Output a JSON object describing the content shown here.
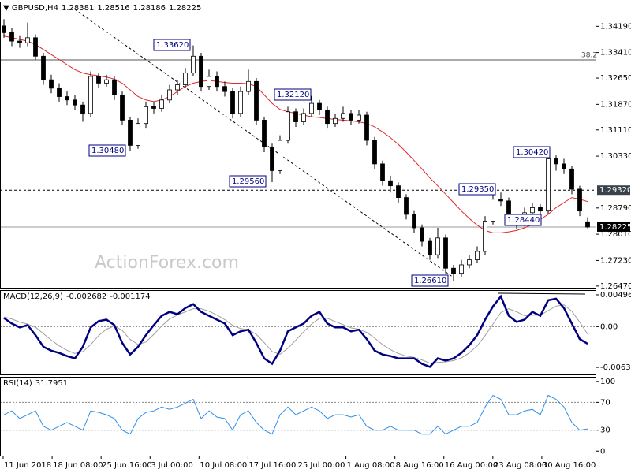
{
  "chart_data": {
    "type": "candlestick",
    "title": "GBPUSD,H4",
    "header_values": [
      1.28381,
      1.28516,
      1.28186,
      1.28225
    ],
    "watermark": "ActionForex.com",
    "ylim": [
      1.2642,
      1.349
    ],
    "yticks": [
      {
        "value": 1.3419,
        "label": "1.34190"
      },
      {
        "value": 1.3341,
        "label": "1.33410"
      },
      {
        "value": 1.3265,
        "label": "1.32650"
      },
      {
        "value": 1.3187,
        "label": "1.31870"
      },
      {
        "value": 1.3111,
        "label": "1.31110"
      },
      {
        "value": 1.3033,
        "label": "1.30330"
      },
      {
        "value": 1.2879,
        "label": "1.28790"
      },
      {
        "value": 1.2801,
        "label": "1.28010"
      },
      {
        "value": 1.2723,
        "label": "1.27230"
      },
      {
        "value": 1.2647,
        "label": "1.26470"
      }
    ],
    "x_labels": [
      "11 Jun 2018",
      "18 Jun 08:00",
      "25 Jun 16:00",
      "3 Jul 00:00",
      "10 Jul 08:00",
      "17 Jul 16:00",
      "25 Jul 00:00",
      "1 Aug 08:00",
      "8 Aug 16:00",
      "16 Aug 00:00",
      "23 Aug 08:00",
      "30 Aug 16:00"
    ],
    "ohlc": [
      [
        1.342,
        1.344,
        1.3385,
        1.34
      ],
      [
        1.34,
        1.3415,
        1.336,
        1.3375
      ],
      [
        1.3375,
        1.339,
        1.3355,
        1.337
      ],
      [
        1.337,
        1.343,
        1.336,
        1.3385
      ],
      [
        1.3385,
        1.3395,
        1.332,
        1.333
      ],
      [
        1.333,
        1.334,
        1.3245,
        1.326
      ],
      [
        1.326,
        1.3275,
        1.322,
        1.3235
      ],
      [
        1.3235,
        1.325,
        1.3195,
        1.321
      ],
      [
        1.321,
        1.3225,
        1.3185,
        1.32
      ],
      [
        1.32,
        1.3215,
        1.317,
        1.3185
      ],
      [
        1.3185,
        1.3195,
        1.3135,
        1.316
      ],
      [
        1.316,
        1.3285,
        1.315,
        1.327
      ],
      [
        1.327,
        1.328,
        1.3235,
        1.325
      ],
      [
        1.325,
        1.3275,
        1.324,
        1.326
      ],
      [
        1.326,
        1.327,
        1.32,
        1.3215
      ],
      [
        1.3215,
        1.3225,
        1.3125,
        1.314
      ],
      [
        1.314,
        1.315,
        1.3048,
        1.3065
      ],
      [
        1.3065,
        1.3145,
        1.3055,
        1.313
      ],
      [
        1.313,
        1.3195,
        1.3115,
        1.318
      ],
      [
        1.318,
        1.3195,
        1.316,
        1.3175
      ],
      [
        1.3175,
        1.3215,
        1.3165,
        1.32
      ],
      [
        1.32,
        1.3245,
        1.319,
        1.323
      ],
      [
        1.323,
        1.326,
        1.3215,
        1.3245
      ],
      [
        1.3245,
        1.3295,
        1.3235,
        1.328
      ],
      [
        1.328,
        1.3362,
        1.327,
        1.333
      ],
      [
        1.333,
        1.334,
        1.3225,
        1.324
      ],
      [
        1.324,
        1.329,
        1.323,
        1.327
      ],
      [
        1.327,
        1.3285,
        1.3225,
        1.324
      ],
      [
        1.324,
        1.3255,
        1.321,
        1.3225
      ],
      [
        1.3225,
        1.3235,
        1.3145,
        1.316
      ],
      [
        1.316,
        1.324,
        1.315,
        1.3225
      ],
      [
        1.3225,
        1.329,
        1.3215,
        1.3255
      ],
      [
        1.3255,
        1.3265,
        1.3125,
        1.314
      ],
      [
        1.314,
        1.315,
        1.3045,
        1.306
      ],
      [
        1.306,
        1.307,
        1.2956,
        1.299
      ],
      [
        1.299,
        1.3095,
        1.298,
        1.308
      ],
      [
        1.308,
        1.318,
        1.307,
        1.3165
      ],
      [
        1.3165,
        1.3175,
        1.312,
        1.3135
      ],
      [
        1.3135,
        1.3175,
        1.3125,
        1.316
      ],
      [
        1.316,
        1.3212,
        1.315,
        1.319
      ],
      [
        1.319,
        1.32,
        1.3155,
        1.317
      ],
      [
        1.317,
        1.318,
        1.3115,
        1.313
      ],
      [
        1.313,
        1.316,
        1.312,
        1.3145
      ],
      [
        1.3145,
        1.318,
        1.3135,
        1.316
      ],
      [
        1.316,
        1.317,
        1.3125,
        1.314
      ],
      [
        1.314,
        1.317,
        1.313,
        1.3155
      ],
      [
        1.3155,
        1.3165,
        1.3065,
        1.308
      ],
      [
        1.308,
        1.309,
        1.2995,
        1.301
      ],
      [
        1.301,
        1.302,
        1.2945,
        1.296
      ],
      [
        1.296,
        1.2975,
        1.2925,
        1.2945
      ],
      [
        1.2945,
        1.2955,
        1.2895,
        1.291
      ],
      [
        1.291,
        1.292,
        1.2845,
        1.286
      ],
      [
        1.286,
        1.287,
        1.2805,
        1.282
      ],
      [
        1.282,
        1.283,
        1.2765,
        1.278
      ],
      [
        1.278,
        1.279,
        1.2725,
        1.274
      ],
      [
        1.274,
        1.282,
        1.273,
        1.279
      ],
      [
        1.279,
        1.28,
        1.2685,
        1.27
      ],
      [
        1.27,
        1.271,
        1.2661,
        1.2685
      ],
      [
        1.2685,
        1.2725,
        1.2675,
        1.271
      ],
      [
        1.271,
        1.274,
        1.27,
        1.2725
      ],
      [
        1.2725,
        1.2765,
        1.2715,
        1.275
      ],
      [
        1.275,
        1.2855,
        1.274,
        1.284
      ],
      [
        1.284,
        1.2935,
        1.283,
        1.2905
      ],
      [
        1.2905,
        1.2925,
        1.2885,
        1.29
      ],
      [
        1.29,
        1.291,
        1.283,
        1.2845
      ],
      [
        1.2845,
        1.286,
        1.2815,
        1.2835
      ],
      [
        1.2835,
        1.288,
        1.2825,
        1.2865
      ],
      [
        1.2865,
        1.2895,
        1.285,
        1.288
      ],
      [
        1.288,
        1.289,
        1.285,
        1.287
      ],
      [
        1.287,
        1.3042,
        1.286,
        1.3025
      ],
      [
        1.3025,
        1.3035,
        1.299,
        1.301
      ],
      [
        1.301,
        1.3025,
        1.298,
        1.2995
      ],
      [
        1.2995,
        1.3005,
        1.292,
        1.2935
      ],
      [
        1.2935,
        1.2945,
        1.2855,
        1.287
      ],
      [
        1.28381,
        1.28516,
        1.28186,
        1.28225
      ]
    ],
    "up_color": "#ffffff",
    "down_color": "#000000",
    "ma": {
      "color": "#e0262b",
      "values": [
        1.339,
        1.3385,
        1.338,
        1.3375,
        1.3365,
        1.335,
        1.3335,
        1.332,
        1.3305,
        1.329,
        1.328,
        1.3275,
        1.3272,
        1.3268,
        1.3262,
        1.325,
        1.323,
        1.321,
        1.32,
        1.3195,
        1.32,
        1.321,
        1.3225,
        1.324,
        1.325,
        1.3255,
        1.3258,
        1.3255,
        1.3252,
        1.325,
        1.325,
        1.3248,
        1.324,
        1.3215,
        1.319,
        1.3172,
        1.3165,
        1.316,
        1.3155,
        1.315,
        1.3148,
        1.3145,
        1.3142,
        1.314,
        1.3138,
        1.3135,
        1.313,
        1.312,
        1.3105,
        1.3088,
        1.3068,
        1.3045,
        1.302,
        1.2995,
        1.2968,
        1.2945,
        1.292,
        1.2895,
        1.287,
        1.2848,
        1.2828,
        1.2812,
        1.2805,
        1.2805,
        1.2808,
        1.2812,
        1.282,
        1.283,
        1.2845,
        1.286,
        1.288,
        1.2895,
        1.291,
        1.2905,
        1.2898
      ]
    },
    "price_lines": [
      {
        "value": 1.2932,
        "label": "1.29320",
        "style": "dashed",
        "color": "#39424a"
      },
      {
        "value": 1.28225,
        "label": "1.28225",
        "style": "solid",
        "color": "#000000"
      }
    ],
    "fib_line": {
      "value": 1.3319,
      "label": "38.2"
    },
    "annotations": [
      {
        "value": 1.3362,
        "label": "1.33620"
      },
      {
        "value": 1.3212,
        "label": "1.32120"
      },
      {
        "value": 1.3048,
        "label": "1.30480"
      },
      {
        "value": 1.2956,
        "label": "1.29560"
      },
      {
        "value": 1.2935,
        "label": "1.29350"
      },
      {
        "value": 1.3042,
        "label": "1.30420"
      },
      {
        "value": 1.2844,
        "label": "1.28440"
      },
      {
        "value": 1.2661,
        "label": "1.26610"
      }
    ],
    "macd": {
      "label": "MACD(12,26,9)",
      "header_values": [
        -0.002682,
        -0.001174
      ],
      "ylim": [
        -0.00747,
        0.00558
      ],
      "yticks": [
        0.004968,
        {
          "value": 0,
          "label": "0.00"
        },
        -0.006372
      ],
      "main": {
        "color": "#000080",
        "values": [
          0.00133,
          0.00048,
          -0.00012,
          0.00024,
          -0.00133,
          -0.00315,
          -0.00375,
          -0.00411,
          -0.0046,
          -0.00496,
          -0.00315,
          -0.00012,
          0.00085,
          0.00109,
          0.00024,
          -0.00254,
          -0.00436,
          -0.00315,
          -0.00133,
          0.00024,
          0.00169,
          0.0023,
          0.00194,
          0.0029,
          0.00351,
          0.0023,
          0.00169,
          0.00109,
          0.00048,
          -0.00133,
          -0.00073,
          -0.00048,
          -0.00254,
          -0.00496,
          -0.00581,
          -0.00375,
          -0.00073,
          -0.00012,
          0.00048,
          0.00169,
          0.0023,
          0.00048,
          -0.00012,
          -0.00012,
          -0.00073,
          -0.00048,
          -0.00194,
          -0.00375,
          -0.00436,
          -0.0046,
          -0.00496,
          -0.00496,
          -0.00496,
          -0.00581,
          -0.00629,
          -0.00496,
          -0.00532,
          -0.00496,
          -0.00411,
          -0.0029,
          -0.00133,
          0.00109,
          0.00315,
          0.00472,
          0.00169,
          0.00073,
          0.00109,
          0.0023,
          0.00169,
          0.00411,
          0.00436,
          0.0029,
          0.00048,
          -0.00194,
          -0.002682
        ]
      },
      "signal": {
        "color": "#a0a0a0",
        "values": [
          0.0015,
          0.0012,
          0.0007,
          0.0004,
          -0.0001,
          -0.0011,
          -0.0021,
          -0.003,
          -0.0037,
          -0.0042,
          -0.0039,
          -0.0028,
          -0.0014,
          -0.0004,
          0.0001,
          -0.0006,
          -0.002,
          -0.0028,
          -0.0024,
          -0.0012,
          0.0001,
          0.0012,
          0.0018,
          0.0023,
          0.0028,
          0.0028,
          0.0024,
          0.0018,
          0.0011,
          0.0002,
          -0.0003,
          -0.0005,
          -0.0012,
          -0.0025,
          -0.0039,
          -0.0043,
          -0.0034,
          -0.0021,
          -0.0008,
          0.0004,
          0.0013,
          0.0013,
          0.0008,
          0.0003,
          -0.0002,
          -0.0004,
          -0.0009,
          -0.0018,
          -0.0028,
          -0.0036,
          -0.0042,
          -0.0046,
          -0.0048,
          -0.0052,
          -0.0057,
          -0.0056,
          -0.0055,
          -0.0053,
          -0.0049,
          -0.0041,
          -0.003,
          -0.0014,
          0.0004,
          0.0022,
          0.0028,
          0.0023,
          0.0017,
          0.0018,
          0.0018,
          0.0025,
          0.0032,
          0.0034,
          0.0024,
          0.0007,
          -0.001174
        ]
      }
    },
    "rsi": {
      "label": "RSI(14)",
      "header_value": 31.7951,
      "ylim": [
        -6.5,
        105.5
      ],
      "yticks": [
        100,
        70,
        30,
        0
      ],
      "levels": [
        70,
        30
      ],
      "color": "#2f8fe6",
      "values": [
        52.2,
        57.8,
        46.7,
        52.2,
        57.8,
        35.6,
        30,
        35.6,
        41.1,
        35.6,
        30,
        57.8,
        55.6,
        52.2,
        46.7,
        30,
        24.4,
        46.7,
        55.6,
        57.8,
        63.3,
        60,
        63.3,
        68.9,
        74.4,
        46.7,
        57.8,
        48.9,
        46.7,
        30,
        52.2,
        57.8,
        41.1,
        30,
        24.4,
        52.2,
        63.3,
        52.2,
        57.8,
        63.3,
        57.8,
        46.7,
        52.2,
        52.2,
        48.9,
        52.2,
        35.6,
        30,
        30,
        35.6,
        30,
        30,
        30,
        24.4,
        24.4,
        35.6,
        24.4,
        30,
        35.6,
        35.6,
        41.1,
        63.3,
        80,
        74.4,
        52.2,
        52.2,
        57.8,
        60,
        52.2,
        80,
        74.4,
        63.3,
        41.1,
        30,
        31.7951
      ]
    }
  }
}
